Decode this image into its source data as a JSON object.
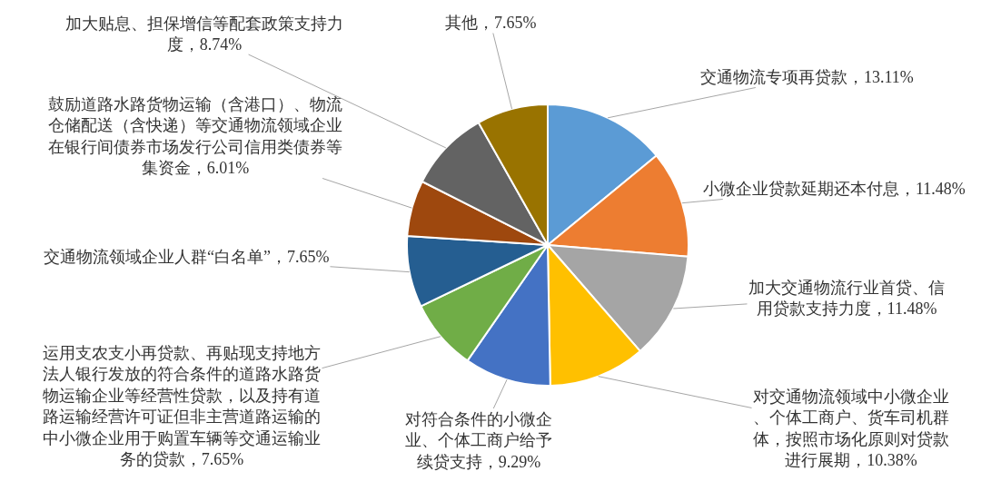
{
  "chart_data": {
    "type": "pie",
    "categories": [
      "交通物流专项再贷款",
      "小微企业贷款延期还本付息",
      "加大交通物流行业首贷、信用贷款支持力度",
      "对交通物流领域中小微企业、个体工商户、货车司机群体，按照市场化原则对贷款进行展期",
      "对符合条件的小微企业、个体工商户给予续贷支持",
      "运用支农支小再贷款、再贴现支持地方法人银行发放的符合条件的道路水路货物运输企业等经营性贷款，以及持有道路运输经营许可证但非主营道路运输的中小微企业用于购置车辆等交通运输业务的贷款",
      "交通物流领域企业人群“白名单”",
      "鼓励道路水路货物运输（含港口）、物流仓储配送（含快递）等交通物流领域企业在银行间债券市场发行公司信用类债券等集资金",
      "加大贴息、担保增信等配套政策支持力度",
      "其他"
    ],
    "values": [
      13.11,
      11.48,
      11.48,
      10.38,
      9.29,
      7.65,
      7.65,
      6.01,
      8.74,
      7.65
    ],
    "value_labels": [
      "13.11%",
      "11.48%",
      "11.48%",
      "10.38%",
      "9.29%",
      "7.65%",
      "7.65%",
      "6.01%",
      "8.74%",
      "7.65%"
    ],
    "colors": [
      "#5b9bd5",
      "#ed7d31",
      "#a5a5a5",
      "#ffc000",
      "#4472c4",
      "#70ad47",
      "#255e91",
      "#9e480e",
      "#636363",
      "#997300"
    ],
    "legend": false
  }
}
